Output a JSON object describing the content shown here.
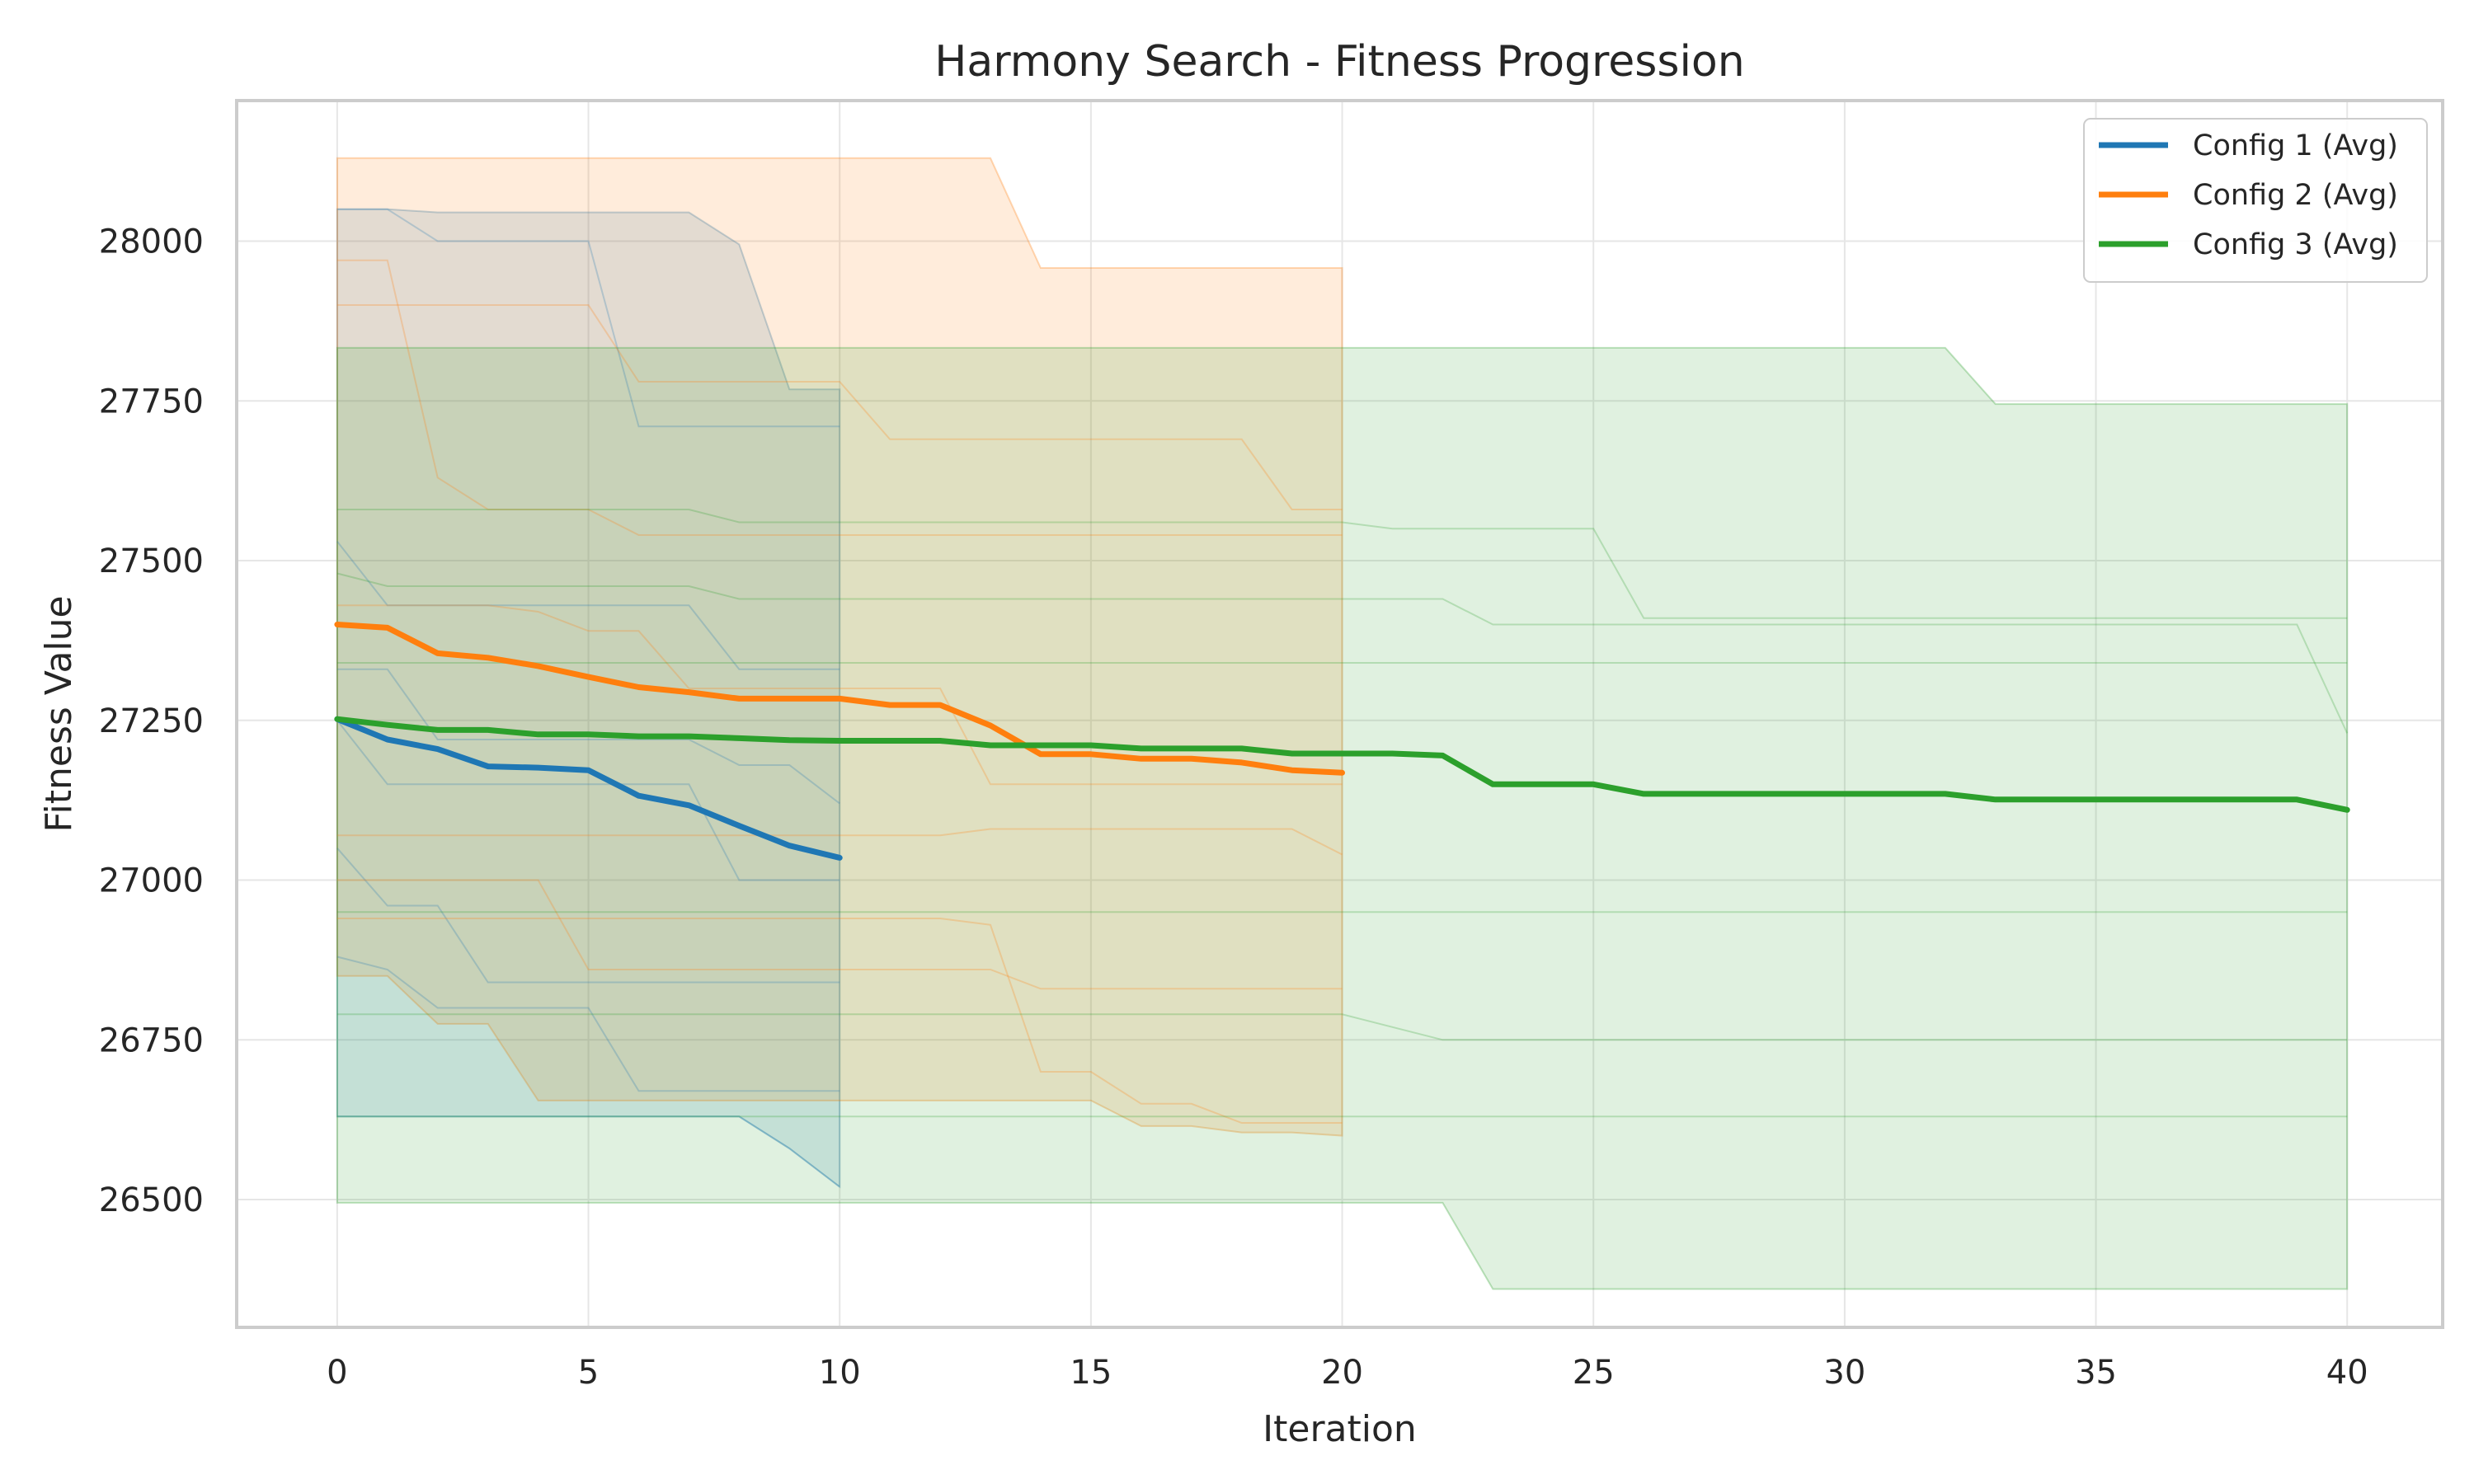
{
  "chart_data": {
    "type": "line",
    "title": "Harmony Search - Fitness Progression",
    "xlabel": "Iteration",
    "ylabel": "Fitness Value",
    "xlim": [
      -2,
      41.9
    ],
    "ylim": [
      26300,
      28220
    ],
    "xticks": [
      0,
      5,
      10,
      15,
      20,
      25,
      30,
      35,
      40
    ],
    "yticks": [
      26500,
      26750,
      27000,
      27250,
      27500,
      27750,
      28000
    ],
    "grid": true,
    "legend_position": "top-right",
    "series": [
      {
        "name": "Config 1 (Avg)",
        "color": "#1f77b4",
        "x": [
          0,
          1,
          2,
          3,
          4,
          5,
          6,
          7,
          8,
          9,
          10
        ],
        "y": [
          27252,
          27220,
          27205,
          27178,
          27176,
          27172,
          27132,
          27117,
          27085,
          27054,
          27035
        ],
        "band_upper": [
          28050,
          28050,
          28045,
          28045,
          28045,
          28045,
          28045,
          28045,
          27995,
          27768,
          27768
        ],
        "band_lower": [
          26630,
          26630,
          26630,
          26630,
          26630,
          26630,
          26630,
          26630,
          26630,
          26580,
          26520
        ],
        "runs": [
          [
            28050,
            28050,
            28000,
            28000,
            28000,
            28000,
            27710,
            27710,
            27710,
            27710,
            27710
          ],
          [
            27530,
            27430,
            27430,
            27430,
            27430,
            27430,
            27430,
            27430,
            27330,
            27330,
            27330
          ],
          [
            27330,
            27330,
            27220,
            27220,
            27220,
            27220,
            27220,
            27220,
            27180,
            27180,
            27120
          ],
          [
            27250,
            27150,
            27150,
            27150,
            27150,
            27150,
            27150,
            27150,
            27000,
            27000,
            27000
          ],
          [
            27050,
            26960,
            26960,
            26840,
            26840,
            26840,
            26840,
            26840,
            26840,
            26840,
            26840
          ],
          [
            26880,
            26860,
            26800,
            26800,
            26800,
            26800,
            26670,
            26670,
            26670,
            26670,
            26670
          ],
          [
            26630,
            26630,
            26630,
            26630,
            26630,
            26630,
            26630,
            26630,
            26630,
            26580,
            26520
          ]
        ]
      },
      {
        "name": "Config 2 (Avg)",
        "color": "#ff7f0e",
        "x": [
          0,
          1,
          2,
          3,
          4,
          5,
          6,
          7,
          8,
          9,
          10,
          11,
          12,
          13,
          14,
          15,
          16,
          17,
          18,
          19,
          20
        ],
        "y": [
          27400,
          27395,
          27355,
          27348,
          27335,
          27318,
          27302,
          27294,
          27284,
          27284,
          27284,
          27274,
          27274,
          27242,
          27197,
          27197,
          27190,
          27190,
          27184,
          27172,
          27168
        ],
        "band_upper": [
          28130,
          28130,
          28130,
          28130,
          28130,
          28130,
          28130,
          28130,
          28130,
          28130,
          28130,
          28130,
          28130,
          28130,
          27958,
          27958,
          27958,
          27958,
          27958,
          27958,
          27958
        ],
        "band_lower": [
          26850,
          26850,
          26775,
          26775,
          26655,
          26655,
          26655,
          26655,
          26655,
          26655,
          26655,
          26655,
          26655,
          26655,
          26655,
          26655,
          26615,
          26615,
          26605,
          26605,
          26600
        ],
        "runs": [
          [
            27970,
            27970,
            27630,
            27580,
            27580,
            27580,
            27540,
            27540,
            27540,
            27540,
            27540,
            27540,
            27540,
            27540,
            27540,
            27540,
            27540,
            27540,
            27540,
            27540,
            27540
          ],
          [
            27900,
            27900,
            27900,
            27900,
            27900,
            27900,
            27780,
            27780,
            27780,
            27780,
            27780,
            27690,
            27690,
            27690,
            27690,
            27690,
            27690,
            27690,
            27690,
            27580,
            27580
          ],
          [
            27430,
            27430,
            27430,
            27430,
            27420,
            27390,
            27390,
            27300,
            27300,
            27300,
            27300,
            27300,
            27300,
            27150,
            27150,
            27150,
            27150,
            27150,
            27150,
            27150,
            27150
          ],
          [
            27070,
            27070,
            27070,
            27070,
            27070,
            27070,
            27070,
            27070,
            27070,
            27070,
            27070,
            27070,
            27070,
            27080,
            27080,
            27080,
            27080,
            27080,
            27080,
            27080,
            27040
          ],
          [
            27000,
            27000,
            27000,
            27000,
            27000,
            26860,
            26860,
            26860,
            26860,
            26860,
            26860,
            26860,
            26860,
            26860,
            26830,
            26830,
            26830,
            26830,
            26830,
            26830,
            26830
          ],
          [
            26940,
            26940,
            26940,
            26940,
            26940,
            26940,
            26940,
            26940,
            26940,
            26940,
            26940,
            26940,
            26940,
            26930,
            26700,
            26700,
            26650,
            26650,
            26620,
            26620,
            26620
          ]
        ]
      },
      {
        "name": "Config 3 (Avg)",
        "color": "#2ca02c",
        "x": [
          0,
          1,
          2,
          3,
          4,
          5,
          6,
          7,
          8,
          9,
          10,
          11,
          12,
          13,
          14,
          15,
          16,
          17,
          18,
          19,
          20,
          21,
          22,
          23,
          24,
          25,
          26,
          27,
          28,
          29,
          30,
          31,
          32,
          33,
          34,
          35,
          36,
          37,
          38,
          39,
          40
        ],
        "y": [
          27252,
          27243,
          27235,
          27235,
          27228,
          27228,
          27225,
          27225,
          27222,
          27219,
          27218,
          27218,
          27218,
          27211,
          27211,
          27211,
          27206,
          27206,
          27206,
          27198,
          27198,
          27198,
          27195,
          27150,
          27150,
          27150,
          27135,
          27135,
          27135,
          27135,
          27135,
          27135,
          27135,
          27126,
          27126,
          27126,
          27126,
          27126,
          27126,
          27126,
          27110
        ],
        "band_upper": [
          27833,
          27833,
          27833,
          27833,
          27833,
          27833,
          27833,
          27833,
          27833,
          27833,
          27833,
          27833,
          27833,
          27833,
          27833,
          27833,
          27833,
          27833,
          27833,
          27833,
          27833,
          27833,
          27833,
          27833,
          27833,
          27833,
          27833,
          27833,
          27833,
          27833,
          27833,
          27833,
          27833,
          27745,
          27745,
          27745,
          27745,
          27745,
          27745,
          27745,
          27745
        ],
        "band_lower": [
          26495,
          26495,
          26495,
          26495,
          26495,
          26495,
          26495,
          26495,
          26495,
          26495,
          26495,
          26495,
          26495,
          26495,
          26495,
          26495,
          26495,
          26495,
          26495,
          26495,
          26495,
          26495,
          26495,
          26360,
          26360,
          26360,
          26360,
          26360,
          26360,
          26360,
          26360,
          26360,
          26360,
          26360,
          26360,
          26360,
          26360,
          26360,
          26360,
          26360,
          26360
        ],
        "runs": [
          [
            27580,
            27580,
            27580,
            27580,
            27580,
            27580,
            27580,
            27580,
            27560,
            27560,
            27560,
            27560,
            27560,
            27560,
            27560,
            27560,
            27560,
            27560,
            27560,
            27560,
            27560,
            27550,
            27550,
            27550,
            27550,
            27550,
            27410,
            27410,
            27410,
            27410,
            27410,
            27410,
            27410,
            27410,
            27410,
            27410,
            27410,
            27410,
            27410,
            27410,
            27410
          ],
          [
            27480,
            27460,
            27460,
            27460,
            27460,
            27460,
            27460,
            27460,
            27440,
            27440,
            27440,
            27440,
            27440,
            27440,
            27440,
            27440,
            27440,
            27440,
            27440,
            27440,
            27440,
            27440,
            27440,
            27400,
            27400,
            27400,
            27400,
            27400,
            27400,
            27400,
            27400,
            27400,
            27400,
            27400,
            27400,
            27400,
            27400,
            27400,
            27400,
            27400,
            27230
          ],
          [
            27340,
            27340,
            27340,
            27340,
            27340,
            27340,
            27340,
            27340,
            27340,
            27340,
            27340,
            27340,
            27340,
            27340,
            27340,
            27340,
            27340,
            27340,
            27340,
            27340,
            27340,
            27340,
            27340,
            27340,
            27340,
            27340,
            27340,
            27340,
            27340,
            27340,
            27340,
            27340,
            27340,
            27340,
            27340,
            27340,
            27340,
            27340,
            27340,
            27340,
            27340
          ],
          [
            26950,
            26950,
            26950,
            26950,
            26950,
            26950,
            26950,
            26950,
            26950,
            26950,
            26950,
            26950,
            26950,
            26950,
            26950,
            26950,
            26950,
            26950,
            26950,
            26950,
            26950,
            26950,
            26950,
            26950,
            26950,
            26950,
            26950,
            26950,
            26950,
            26950,
            26950,
            26950,
            26950,
            26950,
            26950,
            26950,
            26950,
            26950,
            26950,
            26950,
            26950
          ],
          [
            26790,
            26790,
            26790,
            26790,
            26790,
            26790,
            26790,
            26790,
            26790,
            26790,
            26790,
            26790,
            26790,
            26790,
            26790,
            26790,
            26790,
            26790,
            26790,
            26790,
            26790,
            26770,
            26750,
            26750,
            26750,
            26750,
            26750,
            26750,
            26750,
            26750,
            26750,
            26750,
            26750,
            26750,
            26750,
            26750,
            26750,
            26750,
            26750,
            26750,
            26750
          ],
          [
            26630,
            26630,
            26630,
            26630,
            26630,
            26630,
            26630,
            26630,
            26630,
            26630,
            26630,
            26630,
            26630,
            26630,
            26630,
            26630,
            26630,
            26630,
            26630,
            26630,
            26630,
            26630,
            26630,
            26630,
            26630,
            26630,
            26630,
            26630,
            26630,
            26630,
            26630,
            26630,
            26630,
            26630,
            26630,
            26630,
            26630,
            26630,
            26630,
            26630,
            26630
          ]
        ]
      }
    ]
  }
}
